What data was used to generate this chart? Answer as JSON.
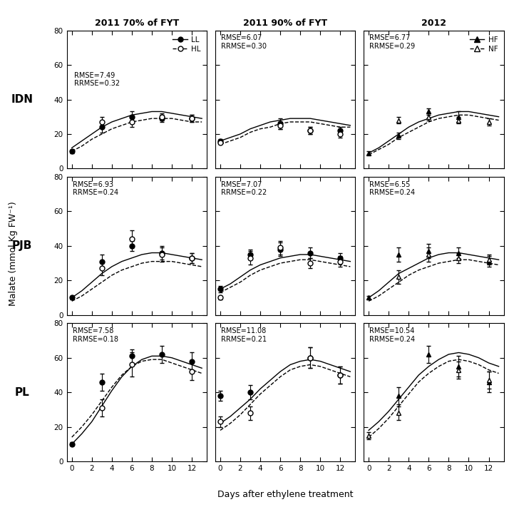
{
  "col_titles": [
    "2011 70% of FYT",
    "2011 90% of FYT",
    "2012"
  ],
  "row_labels": [
    "IDN",
    "PJB",
    "PL"
  ],
  "xlabel": "Days after ethylene treatment",
  "ylabel": "Malate (mmol.Kg FW⁻¹)",
  "ylim": [
    0,
    80
  ],
  "yticks": [
    0,
    20,
    40,
    60,
    80
  ],
  "xlim": [
    -0.5,
    13.5
  ],
  "xticks": [
    0,
    2,
    4,
    6,
    8,
    10,
    12
  ],
  "rmse_texts": [
    [
      "RMSE=7.49\nRRMSE=0.32",
      "RMSE=6.07\nRRMSE=0.30",
      "RMSE=6.77\nRRMSE=0.29"
    ],
    [
      "RMSE=6.93\nRRMSE=0.24",
      "RMSE=7.07\nRRMSE=0.22",
      "RMSE=6.55\nRRMSE=0.24"
    ],
    [
      "RMSE=7.58\nRRMSE=0.18",
      "RMSE=11.08\nRRMSE=0.21",
      "RMSE=10.54\nRRMSE=0.24"
    ]
  ],
  "sim_lines": {
    "IDN_70_solid": {
      "x": [
        0,
        1,
        2,
        3,
        4,
        5,
        6,
        7,
        8,
        9,
        10,
        11,
        12,
        13
      ],
      "y": [
        12,
        16,
        20,
        24,
        27,
        29,
        31,
        32,
        33,
        33,
        32,
        31,
        30,
        29
      ]
    },
    "IDN_70_dashed": {
      "x": [
        0,
        1,
        2,
        3,
        4,
        5,
        6,
        7,
        8,
        9,
        10,
        11,
        12,
        13
      ],
      "y": [
        10,
        13,
        17,
        20,
        23,
        25,
        27,
        28,
        29,
        29,
        29,
        28,
        27,
        27
      ]
    },
    "IDN_90_solid": {
      "x": [
        0,
        1,
        2,
        3,
        4,
        5,
        6,
        7,
        8,
        9,
        10,
        11,
        12,
        13
      ],
      "y": [
        16,
        18,
        20,
        23,
        25,
        27,
        28,
        29,
        29,
        29,
        28,
        27,
        26,
        25
      ]
    },
    "IDN_90_dashed": {
      "x": [
        0,
        1,
        2,
        3,
        4,
        5,
        6,
        7,
        8,
        9,
        10,
        11,
        12,
        13
      ],
      "y": [
        14,
        16,
        18,
        21,
        23,
        24,
        26,
        27,
        27,
        27,
        26,
        25,
        24,
        24
      ]
    },
    "IDN_2012_solid": {
      "x": [
        0,
        1,
        2,
        3,
        4,
        5,
        6,
        7,
        8,
        9,
        10,
        11,
        12,
        13
      ],
      "y": [
        9,
        12,
        16,
        20,
        24,
        27,
        29,
        31,
        32,
        33,
        33,
        32,
        31,
        30
      ]
    },
    "IDN_2012_dashed": {
      "x": [
        0,
        1,
        2,
        3,
        4,
        5,
        6,
        7,
        8,
        9,
        10,
        11,
        12,
        13
      ],
      "y": [
        8,
        11,
        14,
        18,
        21,
        24,
        27,
        29,
        30,
        31,
        31,
        30,
        29,
        28
      ]
    },
    "PJB_70_solid": {
      "x": [
        0,
        1,
        2,
        3,
        4,
        5,
        6,
        7,
        8,
        9,
        10,
        11,
        12,
        13
      ],
      "y": [
        10,
        14,
        19,
        24,
        28,
        31,
        33,
        35,
        36,
        36,
        35,
        34,
        33,
        32
      ]
    },
    "PJB_70_dashed": {
      "x": [
        0,
        1,
        2,
        3,
        4,
        5,
        6,
        7,
        8,
        9,
        10,
        11,
        12,
        13
      ],
      "y": [
        8,
        11,
        15,
        19,
        23,
        26,
        28,
        30,
        31,
        31,
        31,
        30,
        29,
        28
      ]
    },
    "PJB_90_solid": {
      "x": [
        0,
        1,
        2,
        3,
        4,
        5,
        6,
        7,
        8,
        9,
        10,
        11,
        12,
        13
      ],
      "y": [
        15,
        18,
        22,
        26,
        29,
        31,
        33,
        34,
        35,
        35,
        34,
        33,
        32,
        31
      ]
    },
    "PJB_90_dashed": {
      "x": [
        0,
        1,
        2,
        3,
        4,
        5,
        6,
        7,
        8,
        9,
        10,
        11,
        12,
        13
      ],
      "y": [
        13,
        16,
        19,
        23,
        26,
        28,
        30,
        31,
        32,
        32,
        31,
        30,
        29,
        28
      ]
    },
    "PJB_2012_solid": {
      "x": [
        0,
        1,
        2,
        3,
        4,
        5,
        6,
        7,
        8,
        9,
        10,
        11,
        12,
        13
      ],
      "y": [
        10,
        14,
        19,
        24,
        27,
        30,
        33,
        35,
        36,
        36,
        35,
        34,
        33,
        32
      ]
    },
    "PJB_2012_dashed": {
      "x": [
        0,
        1,
        2,
        3,
        4,
        5,
        6,
        7,
        8,
        9,
        10,
        11,
        12,
        13
      ],
      "y": [
        8,
        11,
        15,
        19,
        23,
        26,
        28,
        30,
        31,
        32,
        32,
        31,
        30,
        29
      ]
    },
    "PL_70_solid": {
      "x": [
        0,
        1,
        2,
        3,
        4,
        5,
        6,
        7,
        8,
        9,
        10,
        11,
        12,
        13
      ],
      "y": [
        10,
        16,
        23,
        32,
        41,
        49,
        55,
        59,
        61,
        61,
        60,
        58,
        56,
        54
      ]
    },
    "PL_70_dashed": {
      "x": [
        0,
        1,
        2,
        3,
        4,
        5,
        6,
        7,
        8,
        9,
        10,
        11,
        12,
        13
      ],
      "y": [
        14,
        20,
        27,
        35,
        43,
        50,
        55,
        58,
        59,
        59,
        57,
        55,
        53,
        51
      ]
    },
    "PL_90_solid": {
      "x": [
        0,
        1,
        2,
        3,
        4,
        5,
        6,
        7,
        8,
        9,
        10,
        11,
        12,
        13
      ],
      "y": [
        22,
        26,
        31,
        36,
        42,
        47,
        52,
        56,
        58,
        59,
        58,
        56,
        54,
        52
      ]
    },
    "PL_90_dashed": {
      "x": [
        0,
        1,
        2,
        3,
        4,
        5,
        6,
        7,
        8,
        9,
        10,
        11,
        12,
        13
      ],
      "y": [
        18,
        22,
        27,
        33,
        39,
        44,
        49,
        53,
        55,
        56,
        55,
        53,
        51,
        49
      ]
    },
    "PL_2012_solid": {
      "x": [
        0,
        1,
        2,
        3,
        4,
        5,
        6,
        7,
        8,
        9,
        10,
        11,
        12,
        13
      ],
      "y": [
        18,
        23,
        29,
        36,
        43,
        50,
        55,
        59,
        62,
        63,
        62,
        60,
        57,
        55
      ]
    },
    "PL_2012_dashed": {
      "x": [
        0,
        1,
        2,
        3,
        4,
        5,
        6,
        7,
        8,
        9,
        10,
        11,
        12,
        13
      ],
      "y": [
        14,
        19,
        25,
        32,
        39,
        46,
        51,
        55,
        58,
        59,
        58,
        56,
        53,
        51
      ]
    }
  },
  "measured_data": {
    "IDN_70_solid": {
      "x": [
        0,
        3,
        6,
        9,
        12
      ],
      "y": [
        10,
        24,
        30,
        29,
        29
      ],
      "yerr": [
        1,
        3,
        3,
        2,
        2
      ]
    },
    "IDN_70_dashed": {
      "x": [
        3,
        6,
        9,
        12
      ],
      "y": [
        27,
        27,
        30,
        29
      ],
      "yerr": [
        3,
        3,
        2,
        2
      ]
    },
    "IDN_90_solid": {
      "x": [
        0,
        6,
        9,
        12
      ],
      "y": [
        16,
        26,
        22,
        22
      ],
      "yerr": [
        1,
        3,
        2,
        2
      ]
    },
    "IDN_90_dashed": {
      "x": [
        0,
        6,
        9,
        12
      ],
      "y": [
        15,
        25,
        22,
        20
      ],
      "yerr": [
        1,
        2,
        2,
        2
      ]
    },
    "IDN_2012_solid": {
      "x": [
        0,
        3,
        6,
        9
      ],
      "y": [
        9,
        19,
        33,
        30
      ],
      "yerr": [
        1,
        2,
        2,
        3
      ]
    },
    "IDN_2012_dashed": {
      "x": [
        3,
        6,
        9,
        12
      ],
      "y": [
        28,
        30,
        28,
        27
      ],
      "yerr": [
        2,
        2,
        2,
        2
      ]
    },
    "PJB_70_solid": {
      "x": [
        0,
        3,
        6,
        9,
        12
      ],
      "y": [
        10,
        31,
        40,
        36,
        33
      ],
      "yerr": [
        1,
        4,
        3,
        4,
        3
      ]
    },
    "PJB_70_dashed": {
      "x": [
        3,
        6,
        9,
        12
      ],
      "y": [
        27,
        44,
        35,
        33
      ],
      "yerr": [
        4,
        5,
        4,
        3
      ]
    },
    "PJB_90_solid": {
      "x": [
        0,
        3,
        6,
        9,
        12
      ],
      "y": [
        15,
        35,
        38,
        36,
        33
      ],
      "yerr": [
        2,
        3,
        4,
        3,
        3
      ]
    },
    "PJB_90_dashed": {
      "x": [
        0,
        3,
        6,
        9,
        12
      ],
      "y": [
        10,
        33,
        39,
        30,
        31
      ],
      "yerr": [
        1,
        4,
        4,
        3,
        3
      ]
    },
    "PJB_2012_solid": {
      "x": [
        0,
        3,
        6,
        9,
        12
      ],
      "y": [
        10,
        35,
        37,
        36,
        31
      ],
      "yerr": [
        1,
        4,
        4,
        3,
        3
      ]
    },
    "PJB_2012_dashed": {
      "x": [
        3,
        6,
        9,
        12
      ],
      "y": [
        22,
        35,
        33,
        32
      ],
      "yerr": [
        4,
        4,
        3,
        3
      ]
    },
    "PL_70_solid": {
      "x": [
        0,
        3,
        6,
        9,
        12
      ],
      "y": [
        10,
        46,
        61,
        62,
        58
      ],
      "yerr": [
        1,
        5,
        4,
        5,
        5
      ]
    },
    "PL_70_dashed": {
      "x": [
        3,
        6,
        12
      ],
      "y": [
        31,
        56,
        52
      ],
      "yerr": [
        5,
        7,
        5
      ]
    },
    "PL_90_solid": {
      "x": [
        0,
        3,
        9,
        12
      ],
      "y": [
        38,
        40,
        60,
        50
      ],
      "yerr": [
        3,
        4,
        6,
        5
      ]
    },
    "PL_90_dashed": {
      "x": [
        0,
        3,
        9,
        12
      ],
      "y": [
        23,
        28,
        60,
        50
      ],
      "yerr": [
        3,
        4,
        6,
        5
      ]
    },
    "PL_2012_solid": {
      "x": [
        3,
        6,
        9,
        12
      ],
      "y": [
        38,
        62,
        55,
        46
      ],
      "yerr": [
        5,
        5,
        6,
        6
      ]
    },
    "PL_2012_dashed": {
      "x": [
        0,
        3,
        9,
        12
      ],
      "y": [
        15,
        28,
        53,
        47
      ],
      "yerr": [
        2,
        4,
        5,
        5
      ]
    }
  }
}
